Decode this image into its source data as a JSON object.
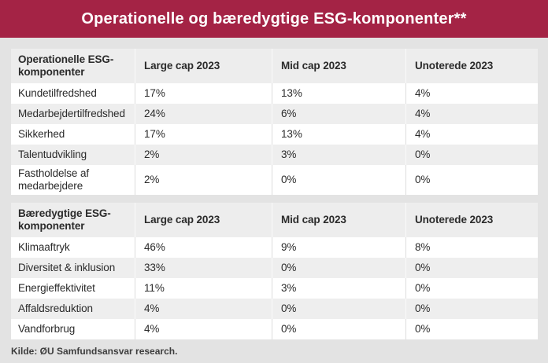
{
  "banner": {
    "title": "Operationelle og bæredygtige ESG-komponenter**"
  },
  "colors": {
    "banner_bg": "#a42345",
    "page_bg": "#e3e3e3",
    "header_row_bg": "#ededed",
    "alt_row_bg": "#eeeeee",
    "text": "#2b2b2b"
  },
  "chart_data": [
    {
      "type": "table",
      "header": {
        "label": "Operationelle ESG-komponenter",
        "cols": [
          "Large cap 2023",
          "Mid cap 2023",
          "Unoterede 2023"
        ]
      },
      "rows": [
        {
          "label": "Kundetilfredshed",
          "values": [
            "17%",
            "13%",
            "4%"
          ]
        },
        {
          "label": "Medarbejdertilfredshed",
          "values": [
            "24%",
            "6%",
            "4%"
          ]
        },
        {
          "label": "Sikkerhed",
          "values": [
            "17%",
            "13%",
            "4%"
          ]
        },
        {
          "label": "Talentudvikling",
          "values": [
            "2%",
            "3%",
            "0%"
          ]
        },
        {
          "label": "Fastholdelse af medarbejdere",
          "values": [
            "2%",
            "0%",
            "0%"
          ]
        }
      ]
    },
    {
      "type": "table",
      "header": {
        "label": "Bæredygtige ESG-komponenter",
        "cols": [
          "Large cap 2023",
          "Mid cap 2023",
          "Unoterede 2023"
        ]
      },
      "rows": [
        {
          "label": "Klimaaftryk",
          "values": [
            "46%",
            "9%",
            "8%"
          ]
        },
        {
          "label": "Diversitet & inklusion",
          "values": [
            "33%",
            "0%",
            "0%"
          ]
        },
        {
          "label": "Energieffektivitet",
          "values": [
            "11%",
            "3%",
            "0%"
          ]
        },
        {
          "label": "Affaldsreduktion",
          "values": [
            "4%",
            "0%",
            "0%"
          ]
        },
        {
          "label": "Vandforbrug",
          "values": [
            "4%",
            "0%",
            "0%"
          ]
        }
      ]
    }
  ],
  "footer": {
    "source": "Kilde: ØU Samfundsansvar research."
  }
}
